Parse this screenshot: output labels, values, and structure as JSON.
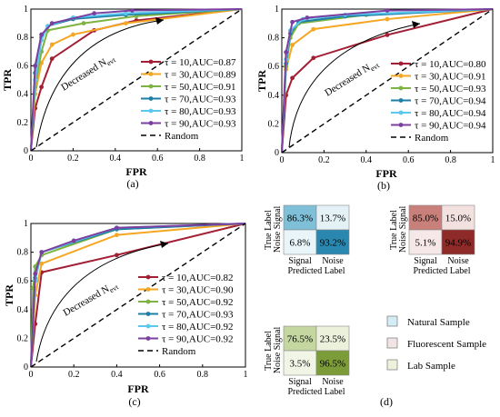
{
  "colors": {
    "tau10": "#a31f34",
    "tau30": "#f5a623",
    "tau50": "#7cb342",
    "tau70": "#1e7fa6",
    "tau80": "#5bc8f0",
    "tau90": "#7b3fa0",
    "random": "#000000",
    "natural_legend": "#d6ecf5",
    "fluorescent_legend": "#f2e4e4",
    "lab_legend": "#eef2dc"
  },
  "chart_data": [
    {
      "panel_label": "(a)",
      "type": "line",
      "xlabel": "FPR",
      "ylabel": "TPR",
      "xlim": [
        0,
        1
      ],
      "ylim": [
        0,
        1
      ],
      "xticks": [
        "0",
        "0.2",
        "0.4",
        "0.6",
        "0.8",
        "1"
      ],
      "yticks": [
        "0",
        "0.2",
        "0.4",
        "0.6",
        "0.8",
        "1"
      ],
      "annotation": "Decreased N",
      "annotation_sub": "evt",
      "legend_position": "lower-right",
      "series": [
        {
          "name": "τ = 10,AUC=0.87",
          "color_key": "tau10",
          "x": [
            0,
            0.02,
            0.05,
            0.1,
            0.3,
            0.5,
            1
          ],
          "y": [
            0,
            0.3,
            0.45,
            0.65,
            0.85,
            0.92,
            1
          ]
        },
        {
          "name": "τ = 30,AUC=0.89",
          "color_key": "tau30",
          "x": [
            0,
            0.02,
            0.05,
            0.1,
            0.2,
            0.45,
            1
          ],
          "y": [
            0,
            0.4,
            0.62,
            0.75,
            0.82,
            0.9,
            1
          ]
        },
        {
          "name": "τ = 50,AUC=0.91",
          "color_key": "tau50",
          "x": [
            0,
            0.02,
            0.05,
            0.08,
            0.25,
            0.5,
            1
          ],
          "y": [
            0,
            0.45,
            0.7,
            0.85,
            0.9,
            0.95,
            1
          ]
        },
        {
          "name": "τ = 70,AUC=0.93",
          "color_key": "tau70",
          "x": [
            0,
            0.02,
            0.05,
            0.08,
            0.2,
            0.45,
            1
          ],
          "y": [
            0,
            0.55,
            0.8,
            0.88,
            0.93,
            0.96,
            1
          ]
        },
        {
          "name": "τ = 80,AUC=0.93",
          "color_key": "tau80",
          "x": [
            0,
            0.02,
            0.05,
            0.08,
            0.2,
            0.45,
            1
          ],
          "y": [
            0,
            0.5,
            0.78,
            0.88,
            0.94,
            0.97,
            1
          ]
        },
        {
          "name": "τ = 90,AUC=0.93",
          "color_key": "tau90",
          "x": [
            0,
            0.02,
            0.05,
            0.1,
            0.3,
            0.48,
            1
          ],
          "y": [
            0,
            0.6,
            0.82,
            0.9,
            0.97,
            0.99,
            1
          ]
        },
        {
          "name": "Random",
          "color_key": "random",
          "dashed": true,
          "x": [
            0,
            1
          ],
          "y": [
            0,
            1
          ]
        }
      ]
    },
    {
      "panel_label": "(b)",
      "type": "line",
      "xlabel": "FPR",
      "ylabel": "TPR",
      "xlim": [
        0,
        1
      ],
      "ylim": [
        0,
        1
      ],
      "xticks": [
        "0",
        "0.2",
        "0.4",
        "0.6",
        "0.8",
        "1"
      ],
      "yticks": [
        "0",
        "0.2",
        "0.4",
        "0.6",
        "0.8",
        "1"
      ],
      "annotation": "Decreased N",
      "annotation_sub": "evt",
      "legend_position": "lower-right",
      "series": [
        {
          "name": "τ = 10,AUC=0.80",
          "color_key": "tau10",
          "x": [
            0,
            0.02,
            0.05,
            0.15,
            0.5,
            1
          ],
          "y": [
            0,
            0.4,
            0.52,
            0.66,
            0.82,
            1
          ]
        },
        {
          "name": "τ = 30,AUC=0.91",
          "color_key": "tau30",
          "x": [
            0,
            0.02,
            0.05,
            0.15,
            0.5,
            1
          ],
          "y": [
            0,
            0.58,
            0.75,
            0.86,
            0.93,
            1
          ]
        },
        {
          "name": "τ = 50,AUC=0.93",
          "color_key": "tau50",
          "x": [
            0,
            0.02,
            0.04,
            0.08,
            0.4,
            1
          ],
          "y": [
            0,
            0.6,
            0.8,
            0.9,
            0.96,
            1
          ]
        },
        {
          "name": "τ = 70,AUC=0.94",
          "color_key": "tau70",
          "x": [
            0,
            0.02,
            0.04,
            0.08,
            0.3,
            1
          ],
          "y": [
            0,
            0.62,
            0.83,
            0.91,
            0.95,
            1
          ]
        },
        {
          "name": "τ = 80,AUC=0.94",
          "color_key": "tau80",
          "x": [
            0,
            0.02,
            0.04,
            0.1,
            0.3,
            1
          ],
          "y": [
            0,
            0.65,
            0.85,
            0.93,
            0.96,
            1
          ]
        },
        {
          "name": "τ = 90,AUC=0.94",
          "color_key": "tau90",
          "x": [
            0,
            0.02,
            0.05,
            0.12,
            0.5,
            1
          ],
          "y": [
            0,
            0.7,
            0.91,
            0.94,
            0.99,
            1
          ]
        },
        {
          "name": "Random",
          "color_key": "random",
          "dashed": true,
          "x": [
            0,
            1
          ],
          "y": [
            0,
            1
          ]
        }
      ]
    },
    {
      "panel_label": "(c)",
      "type": "line",
      "xlabel": "FPR",
      "ylabel": "TPR",
      "xlim": [
        0,
        1
      ],
      "ylim": [
        0,
        1
      ],
      "xticks": [
        "0",
        "0.2",
        "0.4",
        "0.6",
        "0.8",
        "1"
      ],
      "yticks": [
        "0",
        "0.2",
        "0.4",
        "0.6",
        "0.8",
        "1"
      ],
      "annotation": "Decreased N",
      "annotation_sub": "evt",
      "legend_position": "lower-right",
      "series": [
        {
          "name": "τ = 10,AUC=0.82",
          "color_key": "tau10",
          "x": [
            0,
            0.02,
            0.05,
            0.4,
            1
          ],
          "y": [
            0,
            0.3,
            0.66,
            0.78,
            1
          ]
        },
        {
          "name": "τ = 30,AUC=0.90",
          "color_key": "tau30",
          "x": [
            0,
            0.02,
            0.05,
            0.4,
            1
          ],
          "y": [
            0,
            0.5,
            0.72,
            0.92,
            1
          ]
        },
        {
          "name": "τ = 50,AUC=0.92",
          "color_key": "tau50",
          "x": [
            0,
            0.01,
            0.02,
            0.05,
            0.4,
            1
          ],
          "y": [
            0,
            0.55,
            0.7,
            0.78,
            0.96,
            1
          ]
        },
        {
          "name": "τ = 70,AUC=0.93",
          "color_key": "tau70",
          "x": [
            0,
            0.02,
            0.05,
            0.4,
            1
          ],
          "y": [
            0,
            0.62,
            0.8,
            0.96,
            1
          ]
        },
        {
          "name": "τ = 80,AUC=0.92",
          "color_key": "tau80",
          "x": [
            0,
            0.02,
            0.05,
            0.4,
            1
          ],
          "y": [
            0,
            0.6,
            0.8,
            0.97,
            1
          ]
        },
        {
          "name": "τ = 90,AUC=0.92",
          "color_key": "tau90",
          "x": [
            0,
            0.02,
            0.05,
            0.2,
            0.4,
            1
          ],
          "y": [
            0,
            0.65,
            0.8,
            0.88,
            0.97,
            1
          ]
        },
        {
          "name": "Random",
          "color_key": "random",
          "dashed": true,
          "x": [
            0,
            1
          ],
          "y": [
            0,
            1
          ]
        }
      ]
    },
    {
      "panel_label": "(d)",
      "type": "heatmap",
      "matrices": [
        {
          "name": "Natural Sample",
          "ylabel": "True Label",
          "xlabel": "Predicted Label",
          "rows": [
            "Signal",
            "Noise"
          ],
          "cols": [
            "Signal",
            "Noise"
          ],
          "values": [
            [
              "86.3%",
              "13.7%"
            ],
            [
              "6.8%",
              "93.2%"
            ]
          ],
          "cell_colors": [
            [
              "#7fc0d8",
              "#e4f2f8"
            ],
            [
              "#e9f5f9",
              "#2a88b0"
            ]
          ]
        },
        {
          "name": "Fluorescent Sample",
          "ylabel": "True Label",
          "xlabel": "Predicted Label",
          "rows": [
            "Signal",
            "Noise"
          ],
          "cols": [
            "Signal",
            "Noise"
          ],
          "values": [
            [
              "85.0%",
              "15.0%"
            ],
            [
              "5.1%",
              "94.9%"
            ]
          ],
          "cell_colors": [
            [
              "#c9807b",
              "#f3e1e0"
            ],
            [
              "#f6e8e8",
              "#8e2a28"
            ]
          ]
        },
        {
          "name": "Lab Sample",
          "ylabel": "True Label",
          "xlabel": "Predicted Label",
          "rows": [
            "Signal",
            "Noise"
          ],
          "cols": [
            "Signal",
            "Noise"
          ],
          "values": [
            [
              "76.5%",
              "23.5%"
            ],
            [
              "3.5%",
              "96.5%"
            ]
          ],
          "cell_colors": [
            [
              "#c4d7a0",
              "#ecf1dc"
            ],
            [
              "#f1f5e6",
              "#7c9c3a"
            ]
          ]
        }
      ],
      "legend": [
        "Natural Sample",
        "Fluorescent Sample",
        "Lab Sample"
      ]
    }
  ]
}
